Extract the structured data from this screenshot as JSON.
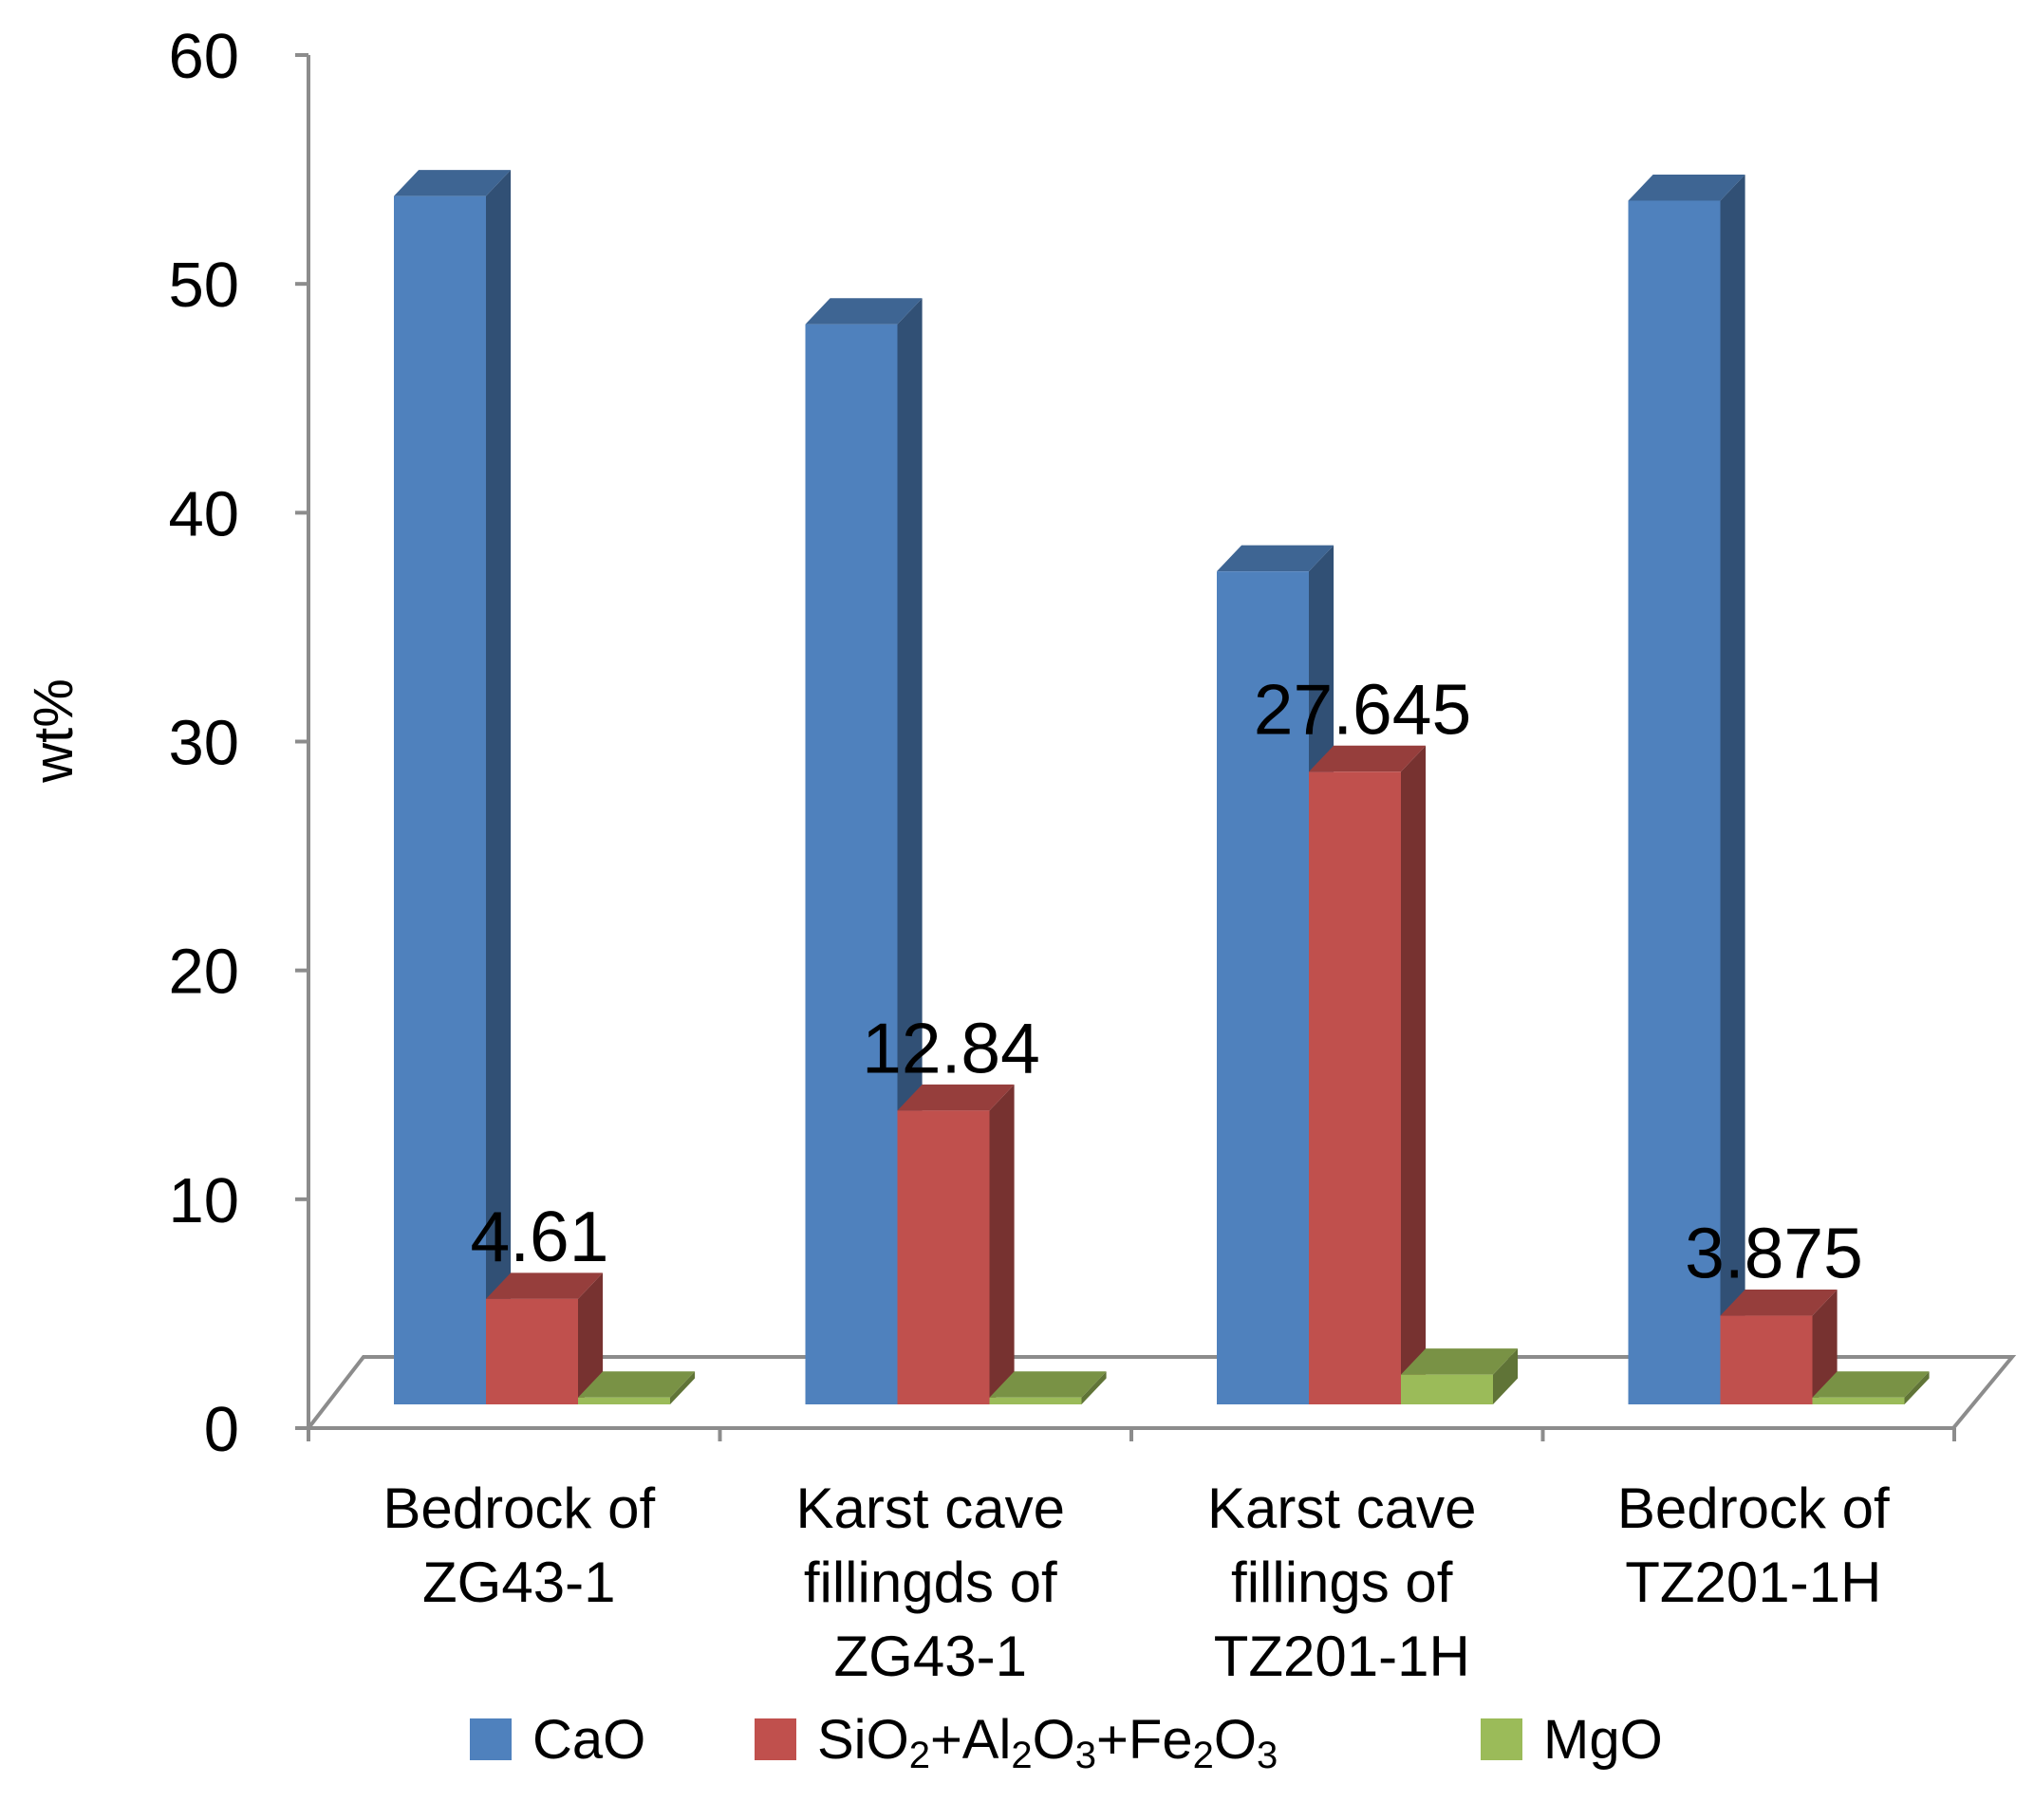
{
  "chart_data": {
    "type": "bar",
    "style": "3d-clustered",
    "title": "",
    "xlabel": "",
    "ylabel": "wt%",
    "ylim": [
      0,
      60
    ],
    "yticks": [
      "0",
      "10",
      "20",
      "30",
      "40",
      "50",
      "60"
    ],
    "grid": false,
    "legend_position": "bottom",
    "categories": [
      [
        "Bedrock of",
        "ZG43-1"
      ],
      [
        "Karst cave",
        "fillingds of",
        "ZG43-1"
      ],
      [
        "Karst cave",
        "fillings of",
        "TZ201-1H"
      ],
      [
        "Bedrock of",
        "TZ201-1H"
      ]
    ],
    "series": [
      {
        "name": "CaO",
        "color": "#4f81bd",
        "values": [
          52.8,
          47.2,
          36.4,
          52.6
        ]
      },
      {
        "name": "SiO2+Al2O3+Fe2O3",
        "label_parts": [
          "SiO",
          "2",
          "+Al",
          "2",
          "O",
          "3",
          "+Fe",
          "2",
          "O",
          "3"
        ],
        "color": "#c0504d",
        "values": [
          4.61,
          12.84,
          27.645,
          3.875
        ]
      },
      {
        "name": "MgO",
        "color": "#9bbb59",
        "values": [
          0.3,
          0.3,
          1.3,
          0.3
        ]
      }
    ],
    "data_labels": [
      {
        "series": 1,
        "category": 0,
        "text": "4.61"
      },
      {
        "series": 1,
        "category": 1,
        "text": "12.84"
      },
      {
        "series": 1,
        "category": 2,
        "text": "27.645"
      },
      {
        "series": 1,
        "category": 3,
        "text": "3.875"
      }
    ]
  }
}
